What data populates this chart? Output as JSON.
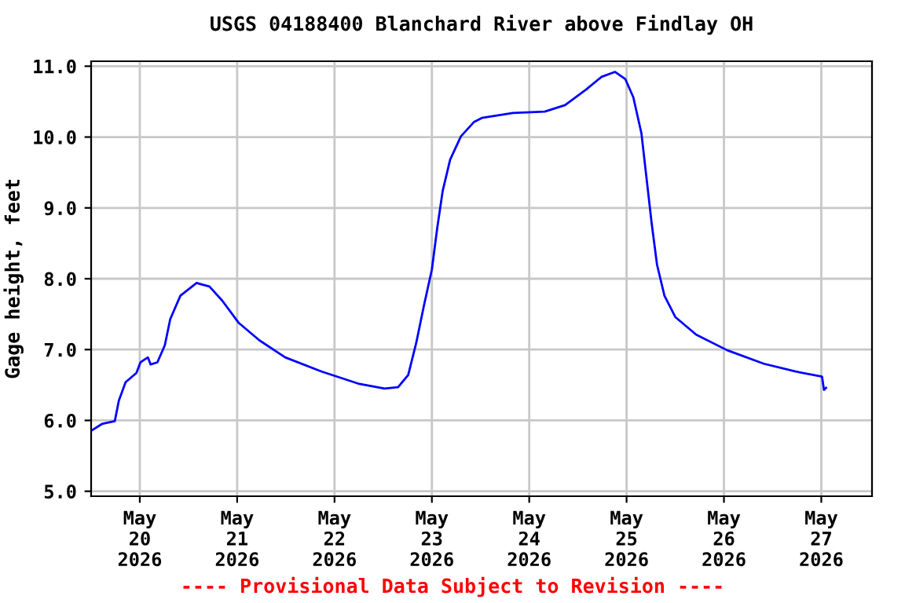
{
  "chart_data": {
    "type": "line",
    "title": "USGS 04188400 Blanchard River above Findlay OH",
    "ylabel": "Gage height, feet",
    "annotations": [
      "---- Provisional Data Subject to Revision ----"
    ],
    "x": [
      "2026-05-19T12:10",
      "2026-05-19T14:40",
      "2026-05-19T17:50",
      "2026-05-19T18:50",
      "2026-05-19T20:30",
      "2026-05-19T23:10",
      "2026-05-20T00:10",
      "2026-05-20T02:00",
      "2026-05-20T02:40",
      "2026-05-20T04:20",
      "2026-05-20T06:10",
      "2026-05-20T07:30",
      "2026-05-20T10:00",
      "2026-05-20T14:00",
      "2026-05-20T17:10",
      "2026-05-20T20:20",
      "2026-05-21T00:20",
      "2026-05-21T05:30",
      "2026-05-21T11:50",
      "2026-05-21T20:50",
      "2026-05-22T05:50",
      "2026-05-22T12:20",
      "2026-05-22T15:40",
      "2026-05-22T18:10",
      "2026-05-22T20:10",
      "2026-05-22T22:00",
      "2026-05-23T00:00",
      "2026-05-23T01:20",
      "2026-05-23T02:40",
      "2026-05-23T04:30",
      "2026-05-23T07:10",
      "2026-05-23T10:20",
      "2026-05-23T12:20",
      "2026-05-23T20:00",
      "2026-05-24T03:50",
      "2026-05-24T08:50",
      "2026-05-24T14:00",
      "2026-05-24T17:50",
      "2026-05-24T21:10",
      "2026-05-24T23:40",
      "2026-05-25T01:40",
      "2026-05-25T03:40",
      "2026-05-25T04:50",
      "2026-05-25T06:10",
      "2026-05-25T07:30",
      "2026-05-25T09:20",
      "2026-05-25T12:00",
      "2026-05-25T17:10",
      "2026-05-26T00:50",
      "2026-05-26T09:50",
      "2026-05-26T17:40",
      "2026-05-27T00:10",
      "2026-05-27T00:40",
      "2026-05-27T01:10"
    ],
    "series": [
      {
        "color": "#0000ff",
        "values": [
          5.86,
          5.95,
          5.99,
          6.28,
          6.54,
          6.67,
          6.82,
          6.89,
          6.79,
          6.82,
          7.06,
          7.43,
          7.76,
          7.94,
          7.89,
          7.69,
          7.38,
          7.13,
          6.89,
          6.69,
          6.52,
          6.45,
          6.47,
          6.64,
          7.1,
          7.61,
          8.13,
          8.72,
          9.24,
          9.68,
          10.01,
          10.21,
          10.27,
          10.34,
          10.36,
          10.45,
          10.67,
          10.85,
          10.92,
          10.82,
          10.56,
          10.05,
          9.46,
          8.79,
          8.2,
          7.76,
          7.46,
          7.21,
          6.99,
          6.8,
          6.69,
          6.62,
          6.43,
          6.46
        ]
      }
    ],
    "xlim": [
      "2026-05-19T12:00",
      "2026-05-27T12:30"
    ],
    "xticks": [
      {
        "value": "2026-05-20",
        "label": "May\n20\n2026"
      },
      {
        "value": "2026-05-21",
        "label": "May\n21\n2026"
      },
      {
        "value": "2026-05-22",
        "label": "May\n22\n2026"
      },
      {
        "value": "2026-05-23",
        "label": "May\n23\n2026"
      },
      {
        "value": "2026-05-24",
        "label": "May\n24\n2026"
      },
      {
        "value": "2026-05-25",
        "label": "May\n25\n2026"
      },
      {
        "value": "2026-05-26",
        "label": "May\n26\n2026"
      },
      {
        "value": "2026-05-27",
        "label": "May\n27\n2026"
      }
    ],
    "ylim": [
      4.93,
      11.07
    ],
    "yticks": [
      {
        "value": 5,
        "label": "5.0"
      },
      {
        "value": 6,
        "label": "6.0"
      },
      {
        "value": 7,
        "label": "7.0"
      },
      {
        "value": 8,
        "label": "8.0"
      },
      {
        "value": 9,
        "label": "9.0"
      },
      {
        "value": 10,
        "label": "10.0"
      },
      {
        "value": 11,
        "label": "11.0"
      }
    ],
    "grid": true,
    "line_style": "solid"
  }
}
